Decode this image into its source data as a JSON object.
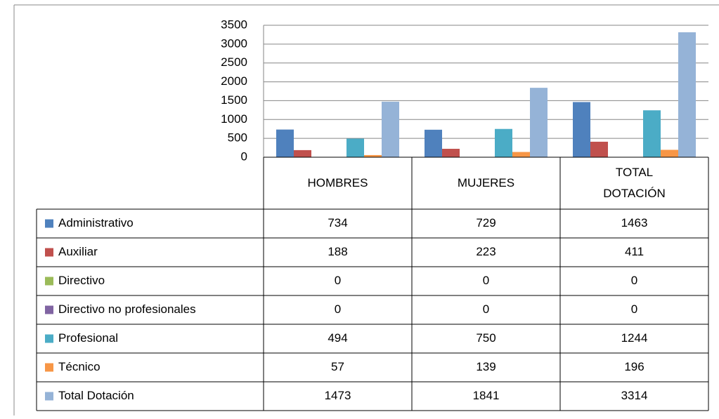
{
  "chart_data": {
    "type": "bar",
    "categories": [
      "HOMBRES",
      "MUJERES",
      "TOTAL DOTACIÓN"
    ],
    "series": [
      {
        "name": "Administrativo",
        "color": "#4f81bd",
        "values": [
          734,
          729,
          1463
        ]
      },
      {
        "name": "Auxiliar",
        "color": "#c0504d",
        "values": [
          188,
          223,
          411
        ]
      },
      {
        "name": "Directivo",
        "color": "#9bbb59",
        "values": [
          0,
          0,
          0
        ]
      },
      {
        "name": "Directivo no profesionales",
        "color": "#8064a2",
        "values": [
          0,
          0,
          0
        ]
      },
      {
        "name": "Profesional",
        "color": "#4bacc6",
        "values": [
          494,
          750,
          1244
        ]
      },
      {
        "name": "Técnico",
        "color": "#f79646",
        "values": [
          57,
          139,
          196
        ]
      },
      {
        "name": "Total Dotación",
        "color": "#95b3d7",
        "values": [
          1473,
          1841,
          3314
        ]
      }
    ],
    "ylim": [
      0,
      3500
    ],
    "yticks": [
      0,
      500,
      1000,
      1500,
      2000,
      2500,
      3000,
      3500
    ],
    "grid": true
  }
}
